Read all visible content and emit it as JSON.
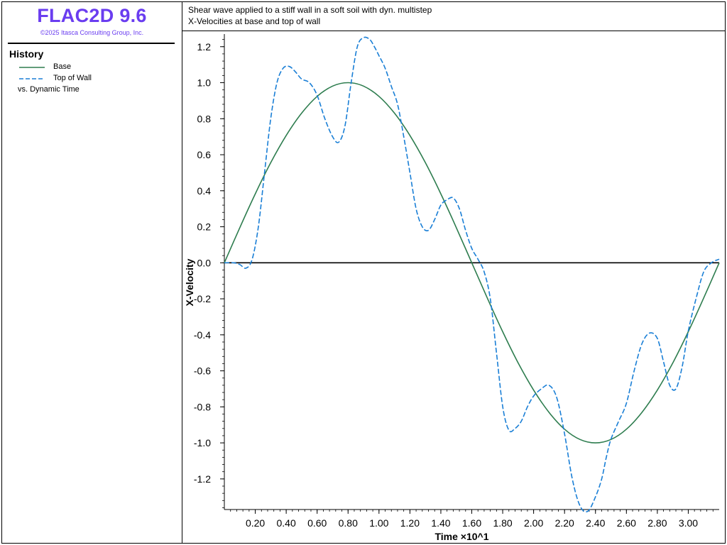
{
  "app": {
    "title": "FLAC2D 9.6",
    "copyright": "©2025 Itasca Consulting Group, Inc."
  },
  "legend": {
    "heading": "History",
    "items": [
      {
        "label": "Base",
        "color": "#2e7d4f",
        "style": "solid"
      },
      {
        "label": "Top of Wall",
        "color": "#1a7fd6",
        "style": "dashed"
      }
    ],
    "vs_label": "vs. Dynamic Time"
  },
  "chart_data": {
    "type": "line",
    "title": "Shear wave applied to a stiff wall in a soft soil with dyn. multistep",
    "subtitle": "X-Velocities at base and top of wall",
    "xlabel": "Time ×10^1",
    "ylabel": "X-Velocity",
    "xlim": [
      0.0,
      3.2
    ],
    "ylim": [
      -1.37,
      1.27
    ],
    "x_ticks": [
      "0.20",
      "0.40",
      "0.60",
      "0.80",
      "1.00",
      "1.20",
      "1.40",
      "1.60",
      "1.80",
      "2.00",
      "2.20",
      "2.40",
      "2.60",
      "2.80",
      "3.00"
    ],
    "y_ticks": [
      "1.2",
      "1.0",
      "0.8",
      "0.6",
      "0.4",
      "0.2",
      "0.0",
      "-0.2",
      "-0.4",
      "-0.6",
      "-0.8",
      "-1.0",
      "-1.2"
    ],
    "grid": false,
    "zero_line": true,
    "series": [
      {
        "name": "Base",
        "color": "#2e7d4f",
        "style": "solid",
        "x": [
          0.0,
          0.1,
          0.2,
          0.3,
          0.4,
          0.5,
          0.6,
          0.7,
          0.8,
          0.9,
          1.0,
          1.1,
          1.2,
          1.3,
          1.4,
          1.5,
          1.6,
          1.7,
          1.8,
          1.9,
          2.0,
          2.1,
          2.2,
          2.3,
          2.4,
          2.5,
          2.6,
          2.7,
          2.8,
          2.9,
          3.0,
          3.1,
          3.2
        ],
        "y": [
          0.0,
          0.195,
          0.383,
          0.556,
          0.707,
          0.831,
          0.924,
          0.981,
          1.0,
          0.981,
          0.924,
          0.831,
          0.707,
          0.556,
          0.383,
          0.195,
          0.0,
          -0.195,
          -0.383,
          -0.556,
          -0.707,
          -0.831,
          -0.924,
          -0.981,
          -1.0,
          -0.981,
          -0.924,
          -0.831,
          -0.707,
          -0.556,
          -0.383,
          -0.195,
          0.0
        ]
      },
      {
        "name": "Top of Wall",
        "color": "#1a7fd6",
        "style": "dashed",
        "x": [
          0.0,
          0.06,
          0.1,
          0.14,
          0.18,
          0.22,
          0.26,
          0.3,
          0.34,
          0.38,
          0.42,
          0.46,
          0.5,
          0.55,
          0.6,
          0.65,
          0.7,
          0.74,
          0.78,
          0.82,
          0.86,
          0.9,
          0.94,
          0.97,
          1.0,
          1.04,
          1.08,
          1.12,
          1.16,
          1.2,
          1.24,
          1.28,
          1.32,
          1.36,
          1.4,
          1.44,
          1.48,
          1.52,
          1.56,
          1.6,
          1.64,
          1.68,
          1.72,
          1.76,
          1.8,
          1.84,
          1.88,
          1.92,
          1.96,
          2.0,
          2.05,
          2.1,
          2.15,
          2.2,
          2.25,
          2.3,
          2.35,
          2.4,
          2.44,
          2.47,
          2.5,
          2.55,
          2.6,
          2.65,
          2.7,
          2.75,
          2.8,
          2.84,
          2.88,
          2.92,
          2.96,
          3.0,
          3.05,
          3.1,
          3.15,
          3.2
        ],
        "y": [
          0.0,
          0.0,
          -0.01,
          -0.03,
          0.02,
          0.2,
          0.5,
          0.8,
          1.0,
          1.08,
          1.09,
          1.06,
          1.02,
          1.0,
          0.93,
          0.8,
          0.7,
          0.67,
          0.76,
          1.0,
          1.2,
          1.25,
          1.24,
          1.2,
          1.15,
          1.08,
          0.98,
          0.88,
          0.7,
          0.5,
          0.3,
          0.2,
          0.18,
          0.24,
          0.32,
          0.35,
          0.36,
          0.3,
          0.18,
          0.08,
          0.02,
          -0.05,
          -0.2,
          -0.5,
          -0.8,
          -0.93,
          -0.92,
          -0.88,
          -0.8,
          -0.74,
          -0.7,
          -0.68,
          -0.75,
          -0.95,
          -1.2,
          -1.35,
          -1.38,
          -1.3,
          -1.2,
          -1.08,
          -0.98,
          -0.88,
          -0.78,
          -0.6,
          -0.45,
          -0.39,
          -0.42,
          -0.55,
          -0.68,
          -0.7,
          -0.58,
          -0.38,
          -0.2,
          -0.05,
          0.0,
          0.02
        ]
      }
    ]
  }
}
